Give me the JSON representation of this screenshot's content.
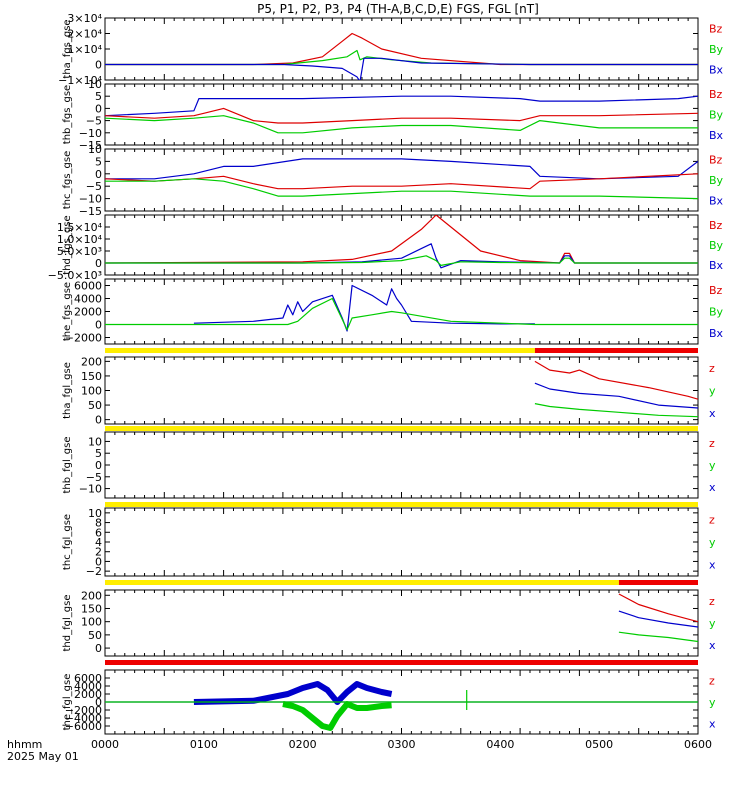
{
  "title": "P5, P1, P2, P3, P4 (TH-A,B,C,D,E) FGS, FGL [nT]",
  "footer": {
    "time_label": "hhmm",
    "date_label": "2025 May 01"
  },
  "x_axis": {
    "ticks": [
      "0000",
      "0100",
      "0200",
      "0300",
      "0400",
      "0500",
      "0600"
    ]
  },
  "colors": {
    "x": "#0000cc",
    "y": "#00cc00",
    "z": "#dd0000",
    "bar_yellow": "#ffee00",
    "bar_red": "#ee0000"
  },
  "chart_data": [
    {
      "type": "line",
      "ylabel": "tha_fgs_gse",
      "ylim": [
        -10000,
        30000
      ],
      "ticks": [
        {
          "v": 30000,
          "t": "3×10⁴"
        },
        {
          "v": 20000,
          "t": "2×10⁴"
        },
        {
          "v": 10000,
          "t": "1×10⁴"
        },
        {
          "v": 0,
          "t": "0"
        },
        {
          "v": -10000,
          "t": "−1×10⁴"
        }
      ],
      "legend": [
        "Bz",
        "By",
        "Bx"
      ],
      "series": [
        {
          "comp": "z",
          "x": [
            0,
            100,
            150,
            190,
            220,
            240,
            250,
            260,
            280,
            320,
            400,
            600
          ],
          "y": [
            0,
            0,
            0,
            1000,
            5000,
            15000,
            20000,
            17000,
            10000,
            4000,
            0,
            0
          ]
        },
        {
          "comp": "y",
          "x": [
            0,
            100,
            180,
            220,
            245,
            255,
            258,
            265,
            290,
            330,
            430,
            600
          ],
          "y": [
            0,
            0,
            0,
            2500,
            5000,
            9000,
            3000,
            5000,
            3000,
            1000,
            0,
            0
          ]
        },
        {
          "comp": "x",
          "x": [
            0,
            100,
            180,
            210,
            240,
            255,
            258,
            262,
            280,
            320,
            430,
            600
          ],
          "y": [
            0,
            0,
            0,
            -1000,
            -2500,
            -8000,
            -11000,
            4000,
            4000,
            1000,
            0,
            0
          ]
        }
      ]
    },
    {
      "type": "line",
      "ylabel": "thb_fgs_gse",
      "ylim": [
        -15,
        10
      ],
      "ticks": [
        {
          "v": 10,
          "t": "10"
        },
        {
          "v": 5,
          "t": "5"
        },
        {
          "v": 0,
          "t": "0"
        },
        {
          "v": -5,
          "t": "−5"
        },
        {
          "v": -10,
          "t": "−10"
        },
        {
          "v": -15,
          "t": "−15"
        }
      ],
      "legend": [
        "Bz",
        "By",
        "Bx"
      ],
      "series": [
        {
          "comp": "x",
          "x": [
            0,
            50,
            90,
            95,
            150,
            200,
            300,
            350,
            420,
            440,
            500,
            580,
            600
          ],
          "y": [
            -3,
            -2,
            -1,
            4,
            4,
            4,
            5,
            5,
            4,
            3,
            3,
            4,
            5
          ]
        },
        {
          "comp": "z",
          "x": [
            0,
            50,
            90,
            100,
            120,
            150,
            175,
            200,
            250,
            300,
            350,
            420,
            440,
            500,
            600
          ],
          "y": [
            -3,
            -4,
            -3,
            -2,
            0,
            -5,
            -6,
            -6,
            -5,
            -4,
            -4,
            -5,
            -3,
            -3,
            -2
          ]
        },
        {
          "comp": "y",
          "x": [
            0,
            50,
            90,
            120,
            150,
            175,
            200,
            250,
            300,
            350,
            420,
            440,
            500,
            600
          ],
          "y": [
            -4,
            -5,
            -4,
            -3,
            -6,
            -10,
            -10,
            -8,
            -7,
            -7,
            -9,
            -5,
            -8,
            -8
          ]
        }
      ]
    },
    {
      "type": "line",
      "ylabel": "thc_fgs_gse",
      "ylim": [
        -15,
        10
      ],
      "ticks": [
        {
          "v": 10,
          "t": "10"
        },
        {
          "v": 5,
          "t": "5"
        },
        {
          "v": 0,
          "t": "0"
        },
        {
          "v": -5,
          "t": "−5"
        },
        {
          "v": -10,
          "t": "−10"
        },
        {
          "v": -15,
          "t": "−15"
        }
      ],
      "legend": [
        "Bz",
        "By",
        "Bx"
      ],
      "series": [
        {
          "comp": "x",
          "x": [
            0,
            50,
            90,
            120,
            150,
            200,
            300,
            350,
            430,
            440,
            500,
            580,
            600
          ],
          "y": [
            -2,
            -2,
            0,
            3,
            3,
            6,
            6,
            5,
            3,
            -1,
            -2,
            -1,
            5
          ]
        },
        {
          "comp": "z",
          "x": [
            0,
            50,
            90,
            120,
            150,
            175,
            200,
            250,
            300,
            350,
            430,
            440,
            500,
            600
          ],
          "y": [
            -2,
            -3,
            -2,
            -1,
            -4,
            -6,
            -6,
            -5,
            -5,
            -4,
            -6,
            -3,
            -2,
            0
          ]
        },
        {
          "comp": "y",
          "x": [
            0,
            50,
            90,
            120,
            150,
            175,
            200,
            250,
            300,
            350,
            430,
            440,
            500,
            600
          ],
          "y": [
            -3,
            -3,
            -2,
            -3,
            -6,
            -9,
            -9,
            -8,
            -7,
            -7,
            -9,
            -9,
            -9,
            -10
          ]
        }
      ]
    },
    {
      "type": "line",
      "ylabel": "thd_fgs_gse",
      "ylim": [
        -5000,
        20000
      ],
      "ticks": [
        {
          "v": 15000,
          "t": "1.5×10⁴"
        },
        {
          "v": 10000,
          "t": "1.0×10⁴"
        },
        {
          "v": 5000,
          "t": "5.0×10³"
        },
        {
          "v": 0,
          "t": "0"
        },
        {
          "v": -5000,
          "t": "−5.0×10³"
        }
      ],
      "legend": [
        "Bz",
        "By",
        "Bx"
      ],
      "series": [
        {
          "comp": "z",
          "x": [
            0,
            200,
            250,
            290,
            320,
            335,
            350,
            380,
            420,
            460,
            465,
            470,
            475,
            600
          ],
          "y": [
            0,
            500,
            1500,
            5000,
            14000,
            20000,
            15000,
            5000,
            1000,
            0,
            4000,
            4000,
            0,
            0
          ]
        },
        {
          "comp": "x",
          "x": [
            0,
            200,
            260,
            300,
            320,
            330,
            335,
            340,
            360,
            400,
            460,
            465,
            470,
            475,
            600
          ],
          "y": [
            0,
            0,
            500,
            2000,
            6000,
            8000,
            2000,
            -2000,
            1000,
            500,
            0,
            3000,
            3000,
            0,
            0
          ]
        },
        {
          "comp": "y",
          "x": [
            0,
            200,
            260,
            300,
            325,
            335,
            340,
            360,
            400,
            460,
            465,
            470,
            475,
            600
          ],
          "y": [
            0,
            0,
            200,
            1000,
            3000,
            1000,
            -1000,
            500,
            200,
            0,
            2000,
            2000,
            0,
            0
          ]
        }
      ]
    },
    {
      "type": "line",
      "ylabel": "the_fgs_gse",
      "ylim": [
        -3000,
        7000
      ],
      "ticks": [
        {
          "v": 6000,
          "t": "6000"
        },
        {
          "v": 4000,
          "t": "4000"
        },
        {
          "v": 2000,
          "t": "2000"
        },
        {
          "v": 0,
          "t": "0"
        },
        {
          "v": -2000,
          "t": "−2000"
        }
      ],
      "legend": [
        "Bz",
        "By",
        "Bx"
      ],
      "series": [
        {
          "comp": "x",
          "x": [
            90,
            150,
            180,
            185,
            190,
            195,
            200,
            210,
            230,
            240,
            245,
            250,
            270,
            285,
            290,
            295,
            300,
            310,
            350,
            400,
            435
          ],
          "y": [
            200,
            500,
            1000,
            3000,
            1500,
            3500,
            2000,
            3500,
            4500,
            1000,
            -1000,
            6000,
            4500,
            3000,
            5500,
            4000,
            3000,
            500,
            200,
            100,
            100
          ]
        },
        {
          "comp": "y",
          "x": [
            0,
            150,
            185,
            195,
            210,
            230,
            240,
            245,
            250,
            270,
            290,
            300,
            350,
            435,
            600
          ],
          "y": [
            0,
            0,
            0,
            500,
            2500,
            4000,
            800,
            -800,
            1000,
            1500,
            2000,
            1800,
            500,
            0,
            0
          ]
        }
      ]
    },
    {
      "type": "line",
      "ylabel": "tha_fgl_gse",
      "ylim": [
        -15,
        215
      ],
      "ticks": [
        {
          "v": 200,
          "t": "200"
        },
        {
          "v": 150,
          "t": "150"
        },
        {
          "v": 100,
          "t": "100"
        },
        {
          "v": 50,
          "t": "50"
        },
        {
          "v": 0,
          "t": "0"
        }
      ],
      "legend": [
        "z",
        "y",
        "x"
      ],
      "bar": {
        "yellow_until": 435
      },
      "series": [
        {
          "comp": "z",
          "x": [
            435,
            450,
            470,
            480,
            500,
            550,
            590,
            600
          ],
          "y": [
            200,
            170,
            160,
            170,
            140,
            110,
            80,
            70
          ]
        },
        {
          "comp": "x",
          "x": [
            435,
            450,
            480,
            520,
            560,
            600
          ],
          "y": [
            125,
            105,
            90,
            80,
            50,
            40
          ]
        },
        {
          "comp": "y",
          "x": [
            435,
            450,
            480,
            520,
            560,
            600
          ],
          "y": [
            55,
            45,
            35,
            25,
            15,
            10
          ]
        }
      ]
    },
    {
      "type": "line",
      "ylabel": "thb_fgl_gse",
      "ylim": [
        -14,
        14
      ],
      "ticks": [
        {
          "v": 10,
          "t": "10"
        },
        {
          "v": 5,
          "t": "5"
        },
        {
          "v": 0,
          "t": "0"
        },
        {
          "v": -5,
          "t": "−5"
        },
        {
          "v": -10,
          "t": "−10"
        }
      ],
      "legend": [
        "z",
        "y",
        "x"
      ],
      "bar": {
        "yellow_until": 600
      },
      "series": []
    },
    {
      "type": "line",
      "ylabel": "thc_fgl_gse",
      "ylim": [
        -3,
        11
      ],
      "ticks": [
        {
          "v": 10,
          "t": "10"
        },
        {
          "v": 8,
          "t": "8"
        },
        {
          "v": 6,
          "t": "6"
        },
        {
          "v": 4,
          "t": "4"
        },
        {
          "v": 2,
          "t": "2"
        },
        {
          "v": 0,
          "t": "0"
        },
        {
          "v": -2,
          "t": "−2"
        }
      ],
      "legend": [
        "z",
        "y",
        "x"
      ],
      "bar": {
        "yellow_until": 600
      },
      "series": []
    },
    {
      "type": "line",
      "ylabel": "thd_fgl_gse",
      "ylim": [
        -30,
        220
      ],
      "ticks": [
        {
          "v": 200,
          "t": "200"
        },
        {
          "v": 150,
          "t": "150"
        },
        {
          "v": 100,
          "t": "100"
        },
        {
          "v": 50,
          "t": "50"
        },
        {
          "v": 0,
          "t": "0"
        }
      ],
      "legend": [
        "z",
        "y",
        "x"
      ],
      "bar": {
        "yellow_until": 520
      },
      "series": [
        {
          "comp": "z",
          "x": [
            520,
            540,
            570,
            600
          ],
          "y": [
            205,
            165,
            130,
            100
          ]
        },
        {
          "comp": "x",
          "x": [
            520,
            540,
            570,
            600
          ],
          "y": [
            140,
            115,
            95,
            80
          ]
        },
        {
          "comp": "y",
          "x": [
            520,
            540,
            570,
            600
          ],
          "y": [
            60,
            50,
            40,
            25
          ]
        }
      ]
    },
    {
      "type": "line",
      "ylabel": "the_fgl_gse",
      "ylim": [
        -8000,
        8000
      ],
      "ticks": [
        {
          "v": 6000,
          "t": "6000"
        },
        {
          "v": 4000,
          "t": "4000"
        },
        {
          "v": 2000,
          "t": "2000"
        },
        {
          "v": 0,
          "t": "0"
        },
        {
          "v": -2000,
          "t": "−2000"
        },
        {
          "v": -4000,
          "t": "−4000"
        },
        {
          "v": -6000,
          "t": "−6000"
        }
      ],
      "legend": [
        "z",
        "y",
        "x"
      ],
      "bar": {
        "yellow_until": 0
      },
      "series": [
        {
          "comp": "x",
          "thick": true,
          "x": [
            90,
            150,
            185,
            200,
            215,
            225,
            235,
            245,
            255,
            265,
            280,
            290
          ],
          "y": [
            0,
            300,
            2000,
            3500,
            4500,
            3000,
            0,
            2500,
            4500,
            3500,
            2500,
            2000
          ]
        },
        {
          "comp": "x",
          "x": [
            0,
            90,
            290,
            400,
            600
          ],
          "y": [
            0,
            0,
            0,
            0,
            0
          ]
        },
        {
          "comp": "y",
          "thick": true,
          "x": [
            180,
            190,
            200,
            210,
            220,
            228,
            235,
            245,
            255,
            265,
            280,
            290
          ],
          "y": [
            -500,
            -1000,
            -2000,
            -4000,
            -6000,
            -6500,
            -3500,
            -500,
            -1500,
            -1500,
            -1000,
            -800
          ]
        },
        {
          "comp": "y",
          "x": [
            0,
            180,
            290,
            600
          ],
          "y": [
            0,
            0,
            0,
            0
          ]
        },
        {
          "comp": "y",
          "x": [
            366,
            366
          ],
          "y": [
            -2000,
            3000
          ]
        }
      ]
    }
  ]
}
